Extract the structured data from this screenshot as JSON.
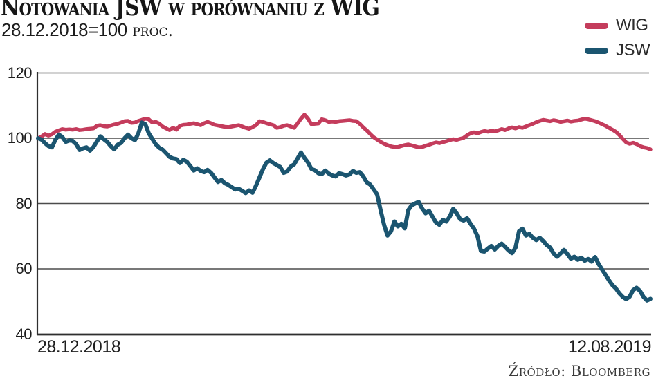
{
  "header": {
    "title": "Notowania JSW w porównaniu z WIG",
    "subtitle_value": "28.12.2018=100",
    "subtitle_unit": " proc."
  },
  "source": "Źródło: Bloomberg",
  "colors": {
    "wig_line": "#c43c5c",
    "jsw_line": "#1b5570",
    "gridline": "#4b4b4b",
    "axis": "#2e2e2e"
  },
  "chart_data": {
    "type": "line",
    "title": "Notowania JSW w porównaniu z WIG",
    "subtitle": "28.12.2018=100 proc.",
    "xlabel": "",
    "ylabel": "",
    "x_start_label": "28.12.2018",
    "x_end_label": "12.08.2019",
    "ylim": [
      40,
      120
    ],
    "yticks": [
      120,
      100,
      80,
      60,
      40
    ],
    "grid": "horizontal",
    "legend_position": "top-right",
    "x_axis_note": "daily samples from 28.12.2018 to 12.08.2019, values indexed to 100",
    "series": [
      {
        "name": "WIG",
        "color": "#c43c5c",
        "values": [
          100,
          100.5,
          101.3,
          100.8,
          101.2,
          102,
          102.4,
          102.8,
          102.6,
          102.7,
          102.6,
          102.8,
          102.5,
          102.6,
          102.8,
          102.9,
          103,
          103.8,
          104,
          103.7,
          103.6,
          103.9,
          104.2,
          104.4,
          104.8,
          105.2,
          105.3,
          104.7,
          104.8,
          105.3,
          105.6,
          106,
          105.8,
          104.8,
          105,
          104.5,
          103.6,
          103,
          102.5,
          103.2,
          102.6,
          103.8,
          104.1,
          104.2,
          104.4,
          104.6,
          104.3,
          104,
          104.6,
          105,
          104.6,
          104.1,
          103.9,
          103.7,
          103.5,
          103.4,
          103.6,
          103.8,
          104,
          103.6,
          103.2,
          102.9,
          103.4,
          104,
          105.2,
          105,
          104.6,
          104.3,
          104,
          103.2,
          103.4,
          103.8,
          104,
          103.6,
          103.2,
          104.5,
          106,
          107.2,
          106,
          104.3,
          104.4,
          104.5,
          105.8,
          105.5,
          105,
          105.1,
          105,
          105.2,
          105.3,
          105.4,
          105.5,
          105.3,
          105.2,
          104.4,
          103.3,
          102.4,
          101.3,
          100.3,
          99.6,
          98.9,
          98.3,
          97.9,
          97.5,
          97.3,
          97.3,
          97.6,
          97.9,
          98.1,
          97.8,
          97.5,
          97.2,
          97.3,
          97.7,
          98,
          98.4,
          98.7,
          98.5,
          98.8,
          99.1,
          99.4,
          99.7,
          99.5,
          99.8,
          100.1,
          100.9,
          101.5,
          101.8,
          101.5,
          101.9,
          102.2,
          102,
          102.3,
          102.1,
          102.4,
          102.8,
          102.5,
          103,
          103.3,
          103,
          103.4,
          103.2,
          103.6,
          104,
          104.4,
          104.9,
          105.3,
          105.6,
          105.4,
          105.2,
          105.5,
          105.3,
          105,
          105.2,
          105.4,
          105.1,
          105.3,
          105.4,
          105.7,
          106,
          105.8,
          105.5,
          105.2,
          104.8,
          104.3,
          103.8,
          103.2,
          102.6,
          102,
          101,
          99.8,
          98.7,
          98.3,
          98.6,
          98.2,
          97.6,
          97.2,
          97,
          96.6
        ]
      },
      {
        "name": "JSW",
        "color": "#1b5570",
        "values": [
          100,
          99.6,
          98.5,
          97.6,
          97.2,
          99.5,
          101.1,
          100.4,
          98.9,
          99.3,
          99.2,
          98.2,
          96.4,
          96.9,
          97.2,
          96.2,
          97.3,
          99,
          100.6,
          99.7,
          98.9,
          97.6,
          96.6,
          98,
          98.6,
          100,
          101.1,
          100,
          99.4,
          101.5,
          104.8,
          104.3,
          101.5,
          99.8,
          98.2,
          97.1,
          96.5,
          95.4,
          94.3,
          93.8,
          93.6,
          92.4,
          93.4,
          92.8,
          91.5,
          90.1,
          90.8,
          90,
          89.6,
          90.3,
          89.4,
          88,
          86.6,
          87.2,
          86.2,
          85.7,
          85,
          84.3,
          84.5,
          83.9,
          83.2,
          84,
          83.3,
          85.5,
          88,
          90.5,
          92.5,
          93.2,
          92.4,
          91.8,
          91.2,
          89.4,
          89.8,
          91.3,
          92,
          93.8,
          95.6,
          94,
          92.6,
          90.6,
          90.2,
          89.3,
          89,
          90.1,
          89.2,
          88.6,
          88.3,
          89.3,
          89,
          88.6,
          88.9,
          90,
          89.4,
          89.6,
          88.3,
          86.5,
          85.8,
          84.3,
          82.8,
          78,
          73.5,
          70.2,
          71.5,
          74.5,
          73,
          73.8,
          72.4,
          78,
          79.5,
          80,
          80.5,
          78.5,
          77,
          77.8,
          76,
          74.2,
          73.5,
          75,
          74.5,
          76,
          78.4,
          77,
          75.2,
          74.8,
          75.5,
          73.8,
          72.3,
          70,
          65.5,
          65.3,
          66.2,
          67,
          65.9,
          67,
          67.7,
          66.7,
          65.6,
          64.8,
          66.5,
          71.5,
          72.3,
          70.2,
          70.7,
          69.5,
          68.8,
          69.5,
          68.5,
          67.3,
          66.5,
          64.7,
          63.7,
          64.7,
          65.8,
          64.5,
          63.1,
          63.7,
          62.8,
          63.4,
          62.5,
          63,
          62.2,
          63.6,
          61.5,
          59.8,
          58.2,
          56.5,
          55,
          54,
          52.5,
          51.4,
          50.7,
          51.5,
          53.5,
          54.2,
          53.2,
          51.4,
          50.3,
          50.8
        ]
      }
    ]
  }
}
